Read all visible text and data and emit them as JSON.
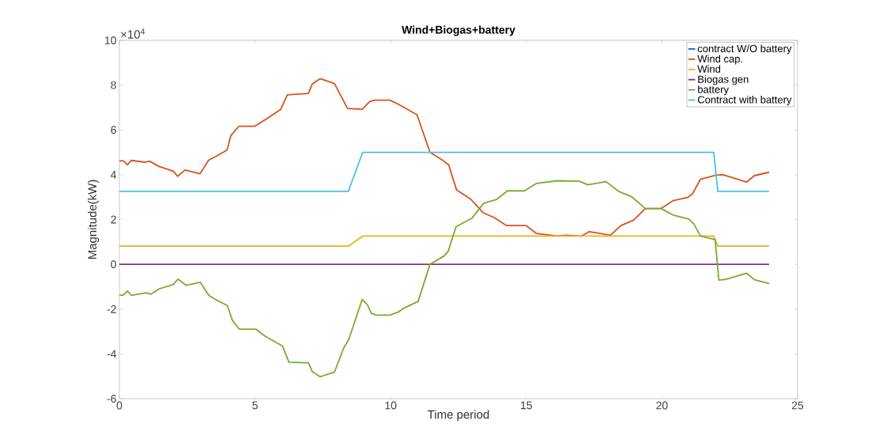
{
  "chart_data": {
    "type": "line",
    "title": "Wind+Biogas+battery",
    "xlabel": "Time period",
    "ylabel": "Magnitude(kW)",
    "annotations": [
      "×10$^{4}$"
    ],
    "xlim": [
      0,
      25
    ],
    "xticks": [
      0,
      5,
      10,
      15,
      20,
      25
    ],
    "ylim": [
      -6,
      10
    ],
    "yticks": [
      -6,
      -4,
      -2,
      0,
      2,
      4,
      6,
      8,
      10
    ],
    "legend": "top right",
    "grid": false,
    "marker": "none",
    "line_style": "solid",
    "series": [
      {
        "name": "contract W/O battery",
        "color": "#0072bd"
      },
      {
        "name": "Wind cap.",
        "color": "#d95319",
        "x": [
          0,
          0.15,
          0.3,
          0.44,
          0.93,
          1.12,
          1.46,
          1.99,
          2.15,
          2.42,
          2.97,
          3.29,
          3.53,
          3.97,
          4.11,
          4.4,
          4.98,
          5.37,
          5.95,
          6.19,
          6.97,
          7.11,
          7.4,
          7.93,
          8.12,
          8.41,
          8.95,
          9.24,
          9.43,
          9.97,
          10.28,
          10.53,
          10.97,
          11.45,
          11.89,
          12.14,
          12.43,
          12.96,
          13.4,
          13.83,
          14.27,
          14.99,
          15.37,
          16.15,
          16.45,
          17.03,
          17.32,
          18.1,
          18.49,
          18.95,
          19.39,
          19.97,
          20.41,
          20.94,
          21.13,
          21.42,
          22.0,
          22.25,
          23.12,
          23.41,
          23.95
        ],
        "values": [
          4.62,
          4.62,
          4.44,
          4.64,
          4.56,
          4.6,
          4.37,
          4.16,
          3.93,
          4.21,
          4.04,
          4.65,
          4.8,
          5.1,
          5.75,
          6.16,
          6.16,
          6.45,
          6.92,
          7.57,
          7.63,
          8.05,
          8.29,
          8.07,
          7.63,
          6.96,
          6.92,
          7.28,
          7.33,
          7.33,
          7.15,
          6.98,
          6.68,
          5.0,
          4.67,
          4.44,
          3.32,
          2.9,
          2.31,
          2.08,
          1.73,
          1.73,
          1.38,
          1.26,
          1.3,
          1.26,
          1.46,
          1.3,
          1.73,
          1.97,
          2.49,
          2.49,
          2.84,
          2.98,
          3.15,
          3.8,
          3.98,
          4.0,
          3.67,
          3.96,
          4.11
        ]
      },
      {
        "name": "Wind",
        "color": "#edb120",
        "x": [
          0,
          8.44,
          8.97,
          21.91,
          22.06,
          23.95
        ],
        "values": [
          0.81,
          0.81,
          1.26,
          1.26,
          0.81,
          0.81
        ]
      },
      {
        "name": "Biogas gen",
        "color": "#7e2f8e",
        "x": [
          0,
          23.95
        ],
        "values": [
          0,
          0
        ]
      },
      {
        "name": "battery",
        "color": "#77ac30",
        "x": [
          0,
          0.15,
          0.3,
          0.44,
          0.98,
          1.17,
          1.46,
          1.99,
          2.16,
          2.46,
          2.98,
          3.3,
          3.54,
          3.98,
          4.17,
          4.42,
          5.04,
          5.38,
          6.01,
          6.25,
          6.97,
          7.11,
          7.4,
          7.93,
          8.27,
          8.46,
          8.95,
          9.14,
          9.29,
          9.48,
          9.97,
          10.28,
          10.48,
          11.01,
          11.45,
          11.98,
          12.12,
          12.41,
          12.99,
          13.43,
          13.91,
          14.3,
          14.93,
          15.37,
          16.14,
          16.97,
          17.26,
          17.94,
          18.4,
          18.88,
          19.39,
          19.97,
          20.41,
          20.99,
          21.18,
          21.42,
          21.96,
          22.1,
          22.35,
          23.12,
          23.41,
          23.95
        ],
        "values": [
          -1.39,
          -1.37,
          -1.19,
          -1.39,
          -1.27,
          -1.33,
          -1.1,
          -0.9,
          -0.66,
          -0.94,
          -0.8,
          -1.39,
          -1.57,
          -1.84,
          -2.51,
          -2.9,
          -2.9,
          -3.22,
          -3.64,
          -4.37,
          -4.4,
          -4.79,
          -5.02,
          -4.81,
          -3.73,
          -3.34,
          -1.57,
          -1.8,
          -2.19,
          -2.27,
          -2.27,
          -2.13,
          -1.96,
          -1.66,
          0,
          0.38,
          0.58,
          1.68,
          2.05,
          2.73,
          2.9,
          3.28,
          3.28,
          3.61,
          3.73,
          3.71,
          3.55,
          3.69,
          3.26,
          3.02,
          2.49,
          2.49,
          2.2,
          2.02,
          1.79,
          1.26,
          1.1,
          -0.71,
          -0.67,
          -0.4,
          -0.69,
          -0.86
        ]
      },
      {
        "name": "Contract with battery",
        "color": "#4dbeee",
        "x": [
          0,
          8.44,
          8.97,
          21.91,
          22.06,
          23.95
        ],
        "values": [
          3.26,
          3.26,
          5.0,
          5.0,
          3.26,
          3.26
        ]
      }
    ]
  }
}
